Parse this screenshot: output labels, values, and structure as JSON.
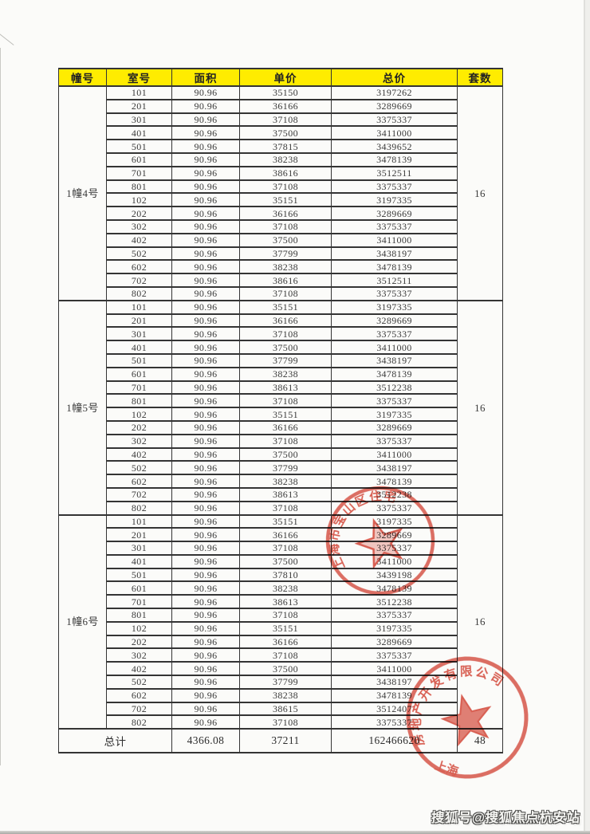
{
  "page": {
    "watermark": "搜狐号@搜狐焦点杭安站"
  },
  "table": {
    "columns": [
      "幢号",
      "室号",
      "面积",
      "单价",
      "总价",
      "套数"
    ],
    "sections": [
      {
        "building": "1幢4号",
        "unit_count": "16",
        "rows": [
          [
            "101",
            "90.96",
            "35150",
            "3197262"
          ],
          [
            "201",
            "90.96",
            "36166",
            "3289669"
          ],
          [
            "301",
            "90.96",
            "37108",
            "3375337"
          ],
          [
            "401",
            "90.96",
            "37500",
            "3411000"
          ],
          [
            "501",
            "90.96",
            "37815",
            "3439652"
          ],
          [
            "601",
            "90.96",
            "38238",
            "3478139"
          ],
          [
            "701",
            "90.96",
            "38616",
            "3512511"
          ],
          [
            "801",
            "90.96",
            "37108",
            "3375337"
          ],
          [
            "102",
            "90.96",
            "35151",
            "3197335"
          ],
          [
            "202",
            "90.96",
            "36166",
            "3289669"
          ],
          [
            "302",
            "90.96",
            "37108",
            "3375337"
          ],
          [
            "402",
            "90.96",
            "37500",
            "3411000"
          ],
          [
            "502",
            "90.96",
            "37799",
            "3438197"
          ],
          [
            "602",
            "90.96",
            "38238",
            "3478139"
          ],
          [
            "702",
            "90.96",
            "38616",
            "3512511"
          ],
          [
            "802",
            "90.96",
            "37108",
            "3375337"
          ]
        ]
      },
      {
        "building": "1幢5号",
        "unit_count": "16",
        "rows": [
          [
            "101",
            "90.96",
            "35151",
            "3197335"
          ],
          [
            "201",
            "90.96",
            "36166",
            "3289669"
          ],
          [
            "301",
            "90.96",
            "37108",
            "3375337"
          ],
          [
            "401",
            "90.96",
            "37500",
            "3411000"
          ],
          [
            "501",
            "90.96",
            "37799",
            "3438197"
          ],
          [
            "601",
            "90.96",
            "38238",
            "3478139"
          ],
          [
            "701",
            "90.96",
            "38613",
            "3512238"
          ],
          [
            "801",
            "90.96",
            "37108",
            "3375337"
          ],
          [
            "102",
            "90.96",
            "35151",
            "3197335"
          ],
          [
            "202",
            "90.96",
            "36166",
            "3289669"
          ],
          [
            "302",
            "90.96",
            "37108",
            "3375337"
          ],
          [
            "402",
            "90.96",
            "37500",
            "3411000"
          ],
          [
            "502",
            "90.96",
            "37799",
            "3438197"
          ],
          [
            "602",
            "90.96",
            "38238",
            "3478139"
          ],
          [
            "702",
            "90.96",
            "38613",
            "3512238"
          ],
          [
            "802",
            "90.96",
            "37108",
            "3375337"
          ]
        ]
      },
      {
        "building": "1幢6号",
        "unit_count": "16",
        "rows": [
          [
            "101",
            "90.96",
            "35151",
            "3197335"
          ],
          [
            "201",
            "90.96",
            "36166",
            "3289669"
          ],
          [
            "301",
            "90.96",
            "37108",
            "3375337"
          ],
          [
            "401",
            "90.96",
            "37500",
            "3411000"
          ],
          [
            "501",
            "90.96",
            "37810",
            "3439198"
          ],
          [
            "601",
            "90.96",
            "38238",
            "3478139"
          ],
          [
            "701",
            "90.96",
            "38613",
            "3512238"
          ],
          [
            "801",
            "90.96",
            "37108",
            "3375337"
          ],
          [
            "102",
            "90.96",
            "35151",
            "3197335"
          ],
          [
            "202",
            "90.96",
            "36166",
            "3289669"
          ],
          [
            "302",
            "90.96",
            "37108",
            "3375337"
          ],
          [
            "402",
            "90.96",
            "37500",
            "3411000"
          ],
          [
            "502",
            "90.96",
            "37799",
            "3438197"
          ],
          [
            "602",
            "90.96",
            "38238",
            "3478139"
          ],
          [
            "702",
            "90.96",
            "38615",
            "3512407"
          ],
          [
            "802",
            "90.96",
            "37108",
            "3375337"
          ]
        ]
      }
    ],
    "total": {
      "label": "总计",
      "area": "4366.08",
      "unit_price": "37211",
      "total_price": "162466620",
      "unit_count": "48"
    }
  },
  "stamps": {
    "seal_mid": {
      "arc_text": "上海市宝山区住宅",
      "color": "#d43d2e"
    },
    "seal_bottom": {
      "arc_text": "房地产开发有限公司",
      "bottom_text": "上海",
      "color": "#d43d2e"
    }
  },
  "colors": {
    "header_bg": "#ffec00",
    "stamp_red": "#d43d2e",
    "border": "#343434"
  }
}
